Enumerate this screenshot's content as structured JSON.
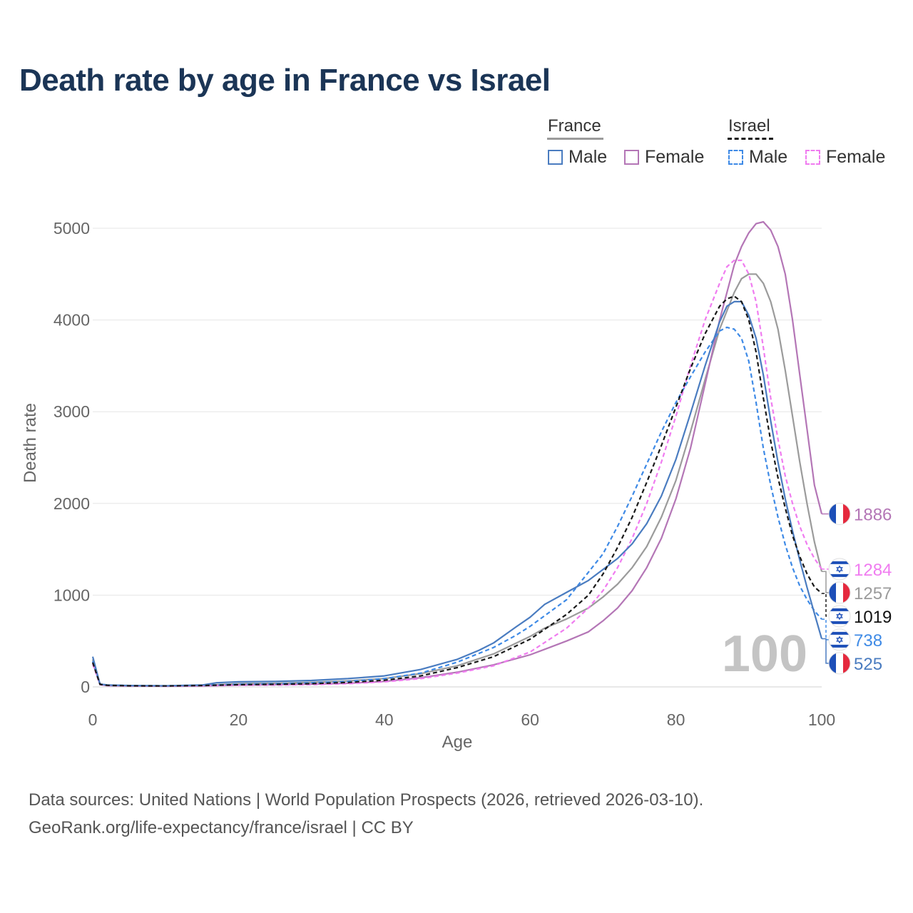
{
  "title": "Death rate by age in France vs Israel",
  "legend": {
    "france_label": "France",
    "israel_label": "Israel",
    "male_label": "Male",
    "female_label": "Female"
  },
  "colors": {
    "france_male": "#4a7cc0",
    "france_female": "#b476b6",
    "israel_male": "#3e8ae6",
    "israel_female": "#f07cf0",
    "france_total": "#9b9b9b",
    "israel_total": "#1a1a1a"
  },
  "chart_data": {
    "type": "line",
    "xlabel": "Age",
    "ylabel": "Death rate",
    "xlim": [
      0,
      100
    ],
    "ylim": [
      0,
      5000
    ],
    "x_ticks": [
      0,
      20,
      40,
      60,
      80,
      100
    ],
    "y_ticks": [
      0,
      1000,
      2000,
      3000,
      4000,
      5000
    ],
    "year_label": "100",
    "series": [
      {
        "name": "France Male",
        "key": "france_male",
        "dashed": false,
        "end_label": "525",
        "flag": "france",
        "points": [
          [
            0,
            330
          ],
          [
            1,
            30
          ],
          [
            2,
            20
          ],
          [
            5,
            15
          ],
          [
            10,
            12
          ],
          [
            15,
            20
          ],
          [
            17,
            45
          ],
          [
            20,
            55
          ],
          [
            25,
            60
          ],
          [
            30,
            70
          ],
          [
            35,
            90
          ],
          [
            40,
            120
          ],
          [
            45,
            190
          ],
          [
            50,
            300
          ],
          [
            53,
            400
          ],
          [
            55,
            480
          ],
          [
            58,
            650
          ],
          [
            60,
            760
          ],
          [
            62,
            900
          ],
          [
            65,
            1030
          ],
          [
            68,
            1160
          ],
          [
            70,
            1280
          ],
          [
            72,
            1400
          ],
          [
            74,
            1560
          ],
          [
            76,
            1780
          ],
          [
            78,
            2080
          ],
          [
            80,
            2480
          ],
          [
            82,
            2980
          ],
          [
            84,
            3500
          ],
          [
            86,
            3980
          ],
          [
            87,
            4150
          ],
          [
            88,
            4200
          ],
          [
            89,
            4200
          ],
          [
            90,
            4050
          ],
          [
            91,
            3800
          ],
          [
            92,
            3400
          ],
          [
            93,
            2900
          ],
          [
            94,
            2450
          ],
          [
            95,
            2050
          ],
          [
            96,
            1700
          ],
          [
            97,
            1380
          ],
          [
            98,
            1080
          ],
          [
            99,
            800
          ],
          [
            100,
            525
          ]
        ]
      },
      {
        "name": "France Female",
        "key": "france_female",
        "dashed": false,
        "end_label": "1886",
        "flag": "france",
        "points": [
          [
            0,
            270
          ],
          [
            1,
            25
          ],
          [
            2,
            15
          ],
          [
            5,
            10
          ],
          [
            10,
            8
          ],
          [
            15,
            12
          ],
          [
            20,
            20
          ],
          [
            25,
            25
          ],
          [
            30,
            30
          ],
          [
            35,
            40
          ],
          [
            40,
            60
          ],
          [
            45,
            100
          ],
          [
            50,
            160
          ],
          [
            55,
            240
          ],
          [
            60,
            350
          ],
          [
            65,
            500
          ],
          [
            68,
            600
          ],
          [
            70,
            720
          ],
          [
            72,
            860
          ],
          [
            74,
            1050
          ],
          [
            76,
            1300
          ],
          [
            78,
            1620
          ],
          [
            80,
            2050
          ],
          [
            82,
            2600
          ],
          [
            84,
            3300
          ],
          [
            86,
            4000
          ],
          [
            88,
            4600
          ],
          [
            89,
            4800
          ],
          [
            90,
            4950
          ],
          [
            91,
            5050
          ],
          [
            92,
            5070
          ],
          [
            93,
            4980
          ],
          [
            94,
            4800
          ],
          [
            95,
            4500
          ],
          [
            96,
            4000
          ],
          [
            97,
            3400
          ],
          [
            98,
            2800
          ],
          [
            99,
            2200
          ],
          [
            100,
            1886
          ]
        ]
      },
      {
        "name": "Israel Male",
        "key": "israel_male",
        "dashed": true,
        "end_label": "738",
        "flag": "israel",
        "points": [
          [
            0,
            280
          ],
          [
            1,
            30
          ],
          [
            2,
            20
          ],
          [
            5,
            15
          ],
          [
            10,
            12
          ],
          [
            15,
            18
          ],
          [
            20,
            30
          ],
          [
            25,
            35
          ],
          [
            30,
            45
          ],
          [
            35,
            60
          ],
          [
            40,
            90
          ],
          [
            45,
            150
          ],
          [
            50,
            270
          ],
          [
            55,
            430
          ],
          [
            58,
            560
          ],
          [
            60,
            660
          ],
          [
            65,
            950
          ],
          [
            70,
            1450
          ],
          [
            72,
            1750
          ],
          [
            74,
            2080
          ],
          [
            76,
            2430
          ],
          [
            78,
            2780
          ],
          [
            80,
            3100
          ],
          [
            82,
            3380
          ],
          [
            84,
            3650
          ],
          [
            86,
            3880
          ],
          [
            87,
            3920
          ],
          [
            88,
            3900
          ],
          [
            89,
            3800
          ],
          [
            90,
            3550
          ],
          [
            91,
            3100
          ],
          [
            92,
            2600
          ],
          [
            93,
            2200
          ],
          [
            94,
            1850
          ],
          [
            95,
            1550
          ],
          [
            96,
            1300
          ],
          [
            97,
            1100
          ],
          [
            98,
            950
          ],
          [
            99,
            830
          ],
          [
            100,
            738
          ]
        ]
      },
      {
        "name": "Israel Female",
        "key": "israel_female",
        "dashed": true,
        "end_label": "1284",
        "flag": "israel",
        "points": [
          [
            0,
            250
          ],
          [
            1,
            25
          ],
          [
            2,
            15
          ],
          [
            5,
            10
          ],
          [
            10,
            8
          ],
          [
            15,
            12
          ],
          [
            20,
            18
          ],
          [
            25,
            20
          ],
          [
            30,
            25
          ],
          [
            35,
            35
          ],
          [
            40,
            55
          ],
          [
            45,
            90
          ],
          [
            50,
            150
          ],
          [
            55,
            230
          ],
          [
            60,
            380
          ],
          [
            65,
            640
          ],
          [
            68,
            860
          ],
          [
            70,
            1050
          ],
          [
            72,
            1300
          ],
          [
            74,
            1620
          ],
          [
            76,
            2000
          ],
          [
            78,
            2450
          ],
          [
            80,
            2950
          ],
          [
            82,
            3500
          ],
          [
            84,
            4000
          ],
          [
            86,
            4400
          ],
          [
            87,
            4580
          ],
          [
            88,
            4650
          ],
          [
            89,
            4650
          ],
          [
            90,
            4500
          ],
          [
            91,
            4200
          ],
          [
            92,
            3700
          ],
          [
            93,
            3150
          ],
          [
            94,
            2700
          ],
          [
            95,
            2300
          ],
          [
            96,
            2000
          ],
          [
            97,
            1750
          ],
          [
            98,
            1550
          ],
          [
            99,
            1400
          ],
          [
            100,
            1284
          ]
        ]
      },
      {
        "name": "France Total",
        "key": "france_total",
        "dashed": false,
        "end_label": "1257",
        "flag": "france",
        "points": [
          [
            0,
            300
          ],
          [
            1,
            28
          ],
          [
            2,
            18
          ],
          [
            5,
            13
          ],
          [
            10,
            10
          ],
          [
            15,
            16
          ],
          [
            20,
            35
          ],
          [
            25,
            40
          ],
          [
            30,
            50
          ],
          [
            35,
            65
          ],
          [
            40,
            90
          ],
          [
            45,
            145
          ],
          [
            50,
            230
          ],
          [
            55,
            360
          ],
          [
            60,
            550
          ],
          [
            62,
            640
          ],
          [
            65,
            740
          ],
          [
            68,
            860
          ],
          [
            70,
            980
          ],
          [
            72,
            1120
          ],
          [
            74,
            1300
          ],
          [
            76,
            1530
          ],
          [
            78,
            1850
          ],
          [
            80,
            2250
          ],
          [
            82,
            2780
          ],
          [
            84,
            3350
          ],
          [
            86,
            3900
          ],
          [
            88,
            4300
          ],
          [
            89,
            4450
          ],
          [
            90,
            4500
          ],
          [
            91,
            4500
          ],
          [
            92,
            4400
          ],
          [
            93,
            4200
          ],
          [
            94,
            3900
          ],
          [
            95,
            3450
          ],
          [
            96,
            2950
          ],
          [
            97,
            2450
          ],
          [
            98,
            1990
          ],
          [
            99,
            1580
          ],
          [
            100,
            1257
          ]
        ]
      },
      {
        "name": "Israel Total",
        "key": "israel_total",
        "dashed": true,
        "end_label": "1019",
        "flag": "israel",
        "points": [
          [
            0,
            265
          ],
          [
            1,
            27
          ],
          [
            2,
            17
          ],
          [
            5,
            12
          ],
          [
            10,
            10
          ],
          [
            15,
            15
          ],
          [
            20,
            24
          ],
          [
            25,
            28
          ],
          [
            30,
            35
          ],
          [
            35,
            48
          ],
          [
            40,
            72
          ],
          [
            45,
            120
          ],
          [
            50,
            210
          ],
          [
            55,
            330
          ],
          [
            60,
            520
          ],
          [
            65,
            790
          ],
          [
            68,
            1000
          ],
          [
            70,
            1230
          ],
          [
            72,
            1520
          ],
          [
            74,
            1850
          ],
          [
            76,
            2230
          ],
          [
            78,
            2630
          ],
          [
            80,
            3050
          ],
          [
            82,
            3470
          ],
          [
            84,
            3850
          ],
          [
            86,
            4150
          ],
          [
            87,
            4230
          ],
          [
            88,
            4260
          ],
          [
            89,
            4200
          ],
          [
            90,
            4000
          ],
          [
            91,
            3650
          ],
          [
            92,
            3150
          ],
          [
            93,
            2680
          ],
          [
            94,
            2280
          ],
          [
            95,
            1950
          ],
          [
            96,
            1650
          ],
          [
            97,
            1420
          ],
          [
            98,
            1230
          ],
          [
            99,
            1090
          ],
          [
            100,
            1019
          ]
        ]
      }
    ]
  },
  "footer": {
    "line1": "Data sources: United Nations | World Population Prospects (2026, retrieved 2026-03-10).",
    "line2": "GeoRank.org/life-expectancy/france/israel | CC BY"
  }
}
